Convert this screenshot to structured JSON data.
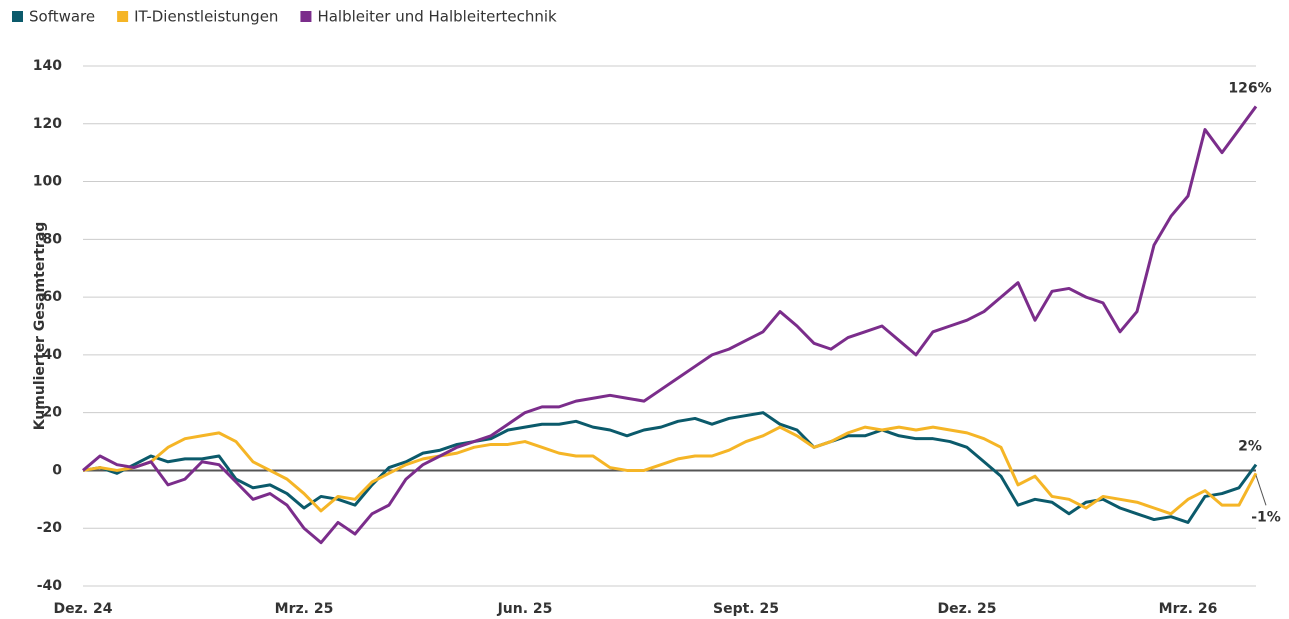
{
  "chart_data": {
    "type": "line",
    "y_label": "Kumulierter Gesamtertrag",
    "categories": [
      "Dez. 24",
      null,
      null,
      null,
      null,
      null,
      null,
      null,
      null,
      null,
      null,
      null,
      null,
      "Mrz. 25",
      null,
      null,
      null,
      null,
      null,
      null,
      null,
      null,
      null,
      null,
      null,
      null,
      "Jun. 25",
      null,
      null,
      null,
      null,
      null,
      null,
      null,
      null,
      null,
      null,
      null,
      null,
      "Sept. 25",
      null,
      null,
      null,
      null,
      null,
      null,
      null,
      null,
      null,
      null,
      null,
      null,
      "Dez. 25",
      null,
      null,
      null,
      null,
      null,
      null,
      null,
      null,
      null,
      null,
      null,
      null,
      "Mrz. 26",
      null,
      null,
      null,
      null
    ],
    "series": [
      {
        "name": "Software",
        "color": "#0b5a6b",
        "values": [
          0,
          1,
          -1,
          2,
          5,
          3,
          4,
          4,
          5,
          -3,
          -6,
          -5,
          -8,
          -13,
          -9,
          -10,
          -12,
          -5,
          1,
          3,
          6,
          7,
          9,
          10,
          11,
          14,
          15,
          16,
          16,
          17,
          15,
          14,
          12,
          14,
          15,
          17,
          18,
          16,
          18,
          19,
          20,
          16,
          14,
          8,
          10,
          12,
          12,
          14,
          12,
          11,
          11,
          10,
          8,
          3,
          -2,
          -12,
          -10,
          -11,
          -15,
          -11,
          -10,
          -13,
          -15,
          -17,
          -16,
          -18,
          -9,
          -8,
          -6,
          2
        ],
        "value_labels": [
          null,
          null,
          null,
          null,
          null,
          null,
          null,
          null,
          null,
          null,
          null,
          null,
          null,
          null,
          null,
          null,
          null,
          null,
          null,
          null,
          null,
          null,
          null,
          null,
          null,
          null,
          null,
          null,
          null,
          null,
          null,
          null,
          null,
          null,
          null,
          null,
          null,
          null,
          null,
          null,
          null,
          null,
          null,
          null,
          null,
          null,
          null,
          null,
          null,
          null,
          null,
          null,
          null,
          null,
          null,
          null,
          null,
          null,
          null,
          null,
          null,
          null,
          null,
          null,
          null,
          null,
          null,
          null,
          null,
          "2%"
        ]
      },
      {
        "name": "IT-Dienstleistungen",
        "color": "#f5b526",
        "values": [
          0,
          1,
          0,
          1,
          3,
          8,
          11,
          12,
          13,
          10,
          3,
          0,
          -3,
          -8,
          -14,
          -9,
          -10,
          -4,
          -1,
          2,
          4,
          5,
          6,
          8,
          9,
          9,
          10,
          8,
          6,
          5,
          5,
          1,
          0,
          0,
          2,
          4,
          5,
          5,
          7,
          10,
          12,
          15,
          12,
          8,
          10,
          13,
          15,
          14,
          15,
          14,
          15,
          14,
          13,
          11,
          8,
          -5,
          -2,
          -9,
          -10,
          -13,
          -9,
          -10,
          -11,
          -13,
          -15,
          -10,
          -7,
          -12,
          -12,
          -1
        ],
        "value_labels": [
          null,
          null,
          null,
          null,
          null,
          null,
          null,
          null,
          null,
          null,
          null,
          null,
          null,
          null,
          null,
          null,
          null,
          null,
          null,
          null,
          null,
          null,
          null,
          null,
          null,
          null,
          null,
          null,
          null,
          null,
          null,
          null,
          null,
          null,
          null,
          null,
          null,
          null,
          null,
          null,
          null,
          null,
          null,
          null,
          null,
          null,
          null,
          null,
          null,
          null,
          null,
          null,
          null,
          null,
          null,
          null,
          null,
          null,
          null,
          null,
          null,
          null,
          null,
          null,
          null,
          null,
          null,
          null,
          null,
          "-1%"
        ]
      },
      {
        "name": "Halbleiter und Halbleitertechnik",
        "color": "#7b2d8b",
        "values": [
          0,
          5,
          2,
          1,
          3,
          -5,
          -3,
          3,
          2,
          -4,
          -10,
          -8,
          -12,
          -20,
          -25,
          -18,
          -22,
          -15,
          -12,
          -3,
          2,
          5,
          8,
          10,
          12,
          16,
          20,
          22,
          22,
          24,
          25,
          26,
          25,
          24,
          28,
          32,
          36,
          40,
          42,
          45,
          48,
          55,
          50,
          44,
          42,
          46,
          48,
          50,
          45,
          40,
          48,
          50,
          52,
          55,
          60,
          65,
          52,
          62,
          63,
          60,
          58,
          48,
          55,
          78,
          88,
          95,
          118,
          110,
          118,
          126
        ],
        "value_labels": [
          null,
          null,
          null,
          null,
          null,
          null,
          null,
          null,
          null,
          null,
          null,
          null,
          null,
          null,
          null,
          null,
          null,
          null,
          null,
          null,
          null,
          null,
          null,
          null,
          null,
          null,
          null,
          null,
          null,
          null,
          null,
          null,
          null,
          null,
          null,
          null,
          null,
          null,
          null,
          null,
          null,
          null,
          null,
          null,
          null,
          null,
          null,
          null,
          null,
          null,
          null,
          null,
          null,
          null,
          null,
          null,
          null,
          null,
          null,
          null,
          null,
          null,
          null,
          null,
          null,
          null,
          null,
          null,
          null,
          "126%"
        ]
      }
    ],
    "ylim": [
      -40,
      140
    ],
    "yticks": [
      -40,
      -20,
      0,
      20,
      40,
      60,
      80,
      100,
      120,
      140
    ],
    "grid": true,
    "legend": "top-left"
  }
}
